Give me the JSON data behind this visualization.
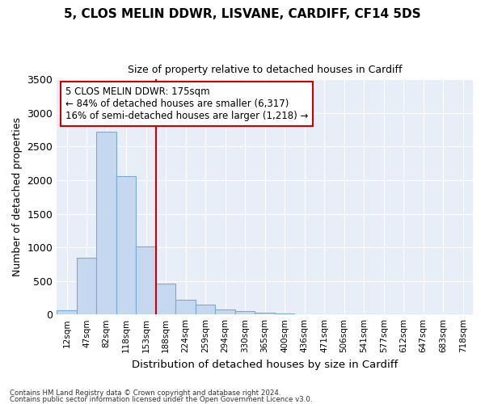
{
  "title1": "5, CLOS MELIN DDWR, LISVANE, CARDIFF, CF14 5DS",
  "title2": "Size of property relative to detached houses in Cardiff",
  "xlabel": "Distribution of detached houses by size in Cardiff",
  "ylabel": "Number of detached properties",
  "categories": [
    "12sqm",
    "47sqm",
    "82sqm",
    "118sqm",
    "153sqm",
    "188sqm",
    "224sqm",
    "259sqm",
    "294sqm",
    "330sqm",
    "365sqm",
    "400sqm",
    "436sqm",
    "471sqm",
    "506sqm",
    "541sqm",
    "577sqm",
    "612sqm",
    "647sqm",
    "683sqm",
    "718sqm"
  ],
  "values": [
    65,
    850,
    2720,
    2060,
    1010,
    460,
    215,
    145,
    75,
    55,
    30,
    10,
    5,
    3,
    2,
    1,
    0,
    0,
    0,
    0,
    0
  ],
  "bar_color": "#c5d8f0",
  "bar_edge_color": "#7aaad4",
  "vline_color": "#cc0000",
  "vline_x_index": 4.5,
  "annotation_text": "5 CLOS MELIN DDWR: 175sqm\n← 84% of detached houses are smaller (6,317)\n16% of semi-detached houses are larger (1,218) →",
  "annotation_box_edge_color": "#cc0000",
  "ylim": [
    0,
    3500
  ],
  "yticks": [
    0,
    500,
    1000,
    1500,
    2000,
    2500,
    3000,
    3500
  ],
  "bg_color": "#e8eef8",
  "grid_color": "#ffffff",
  "footer1": "Contains HM Land Registry data © Crown copyright and database right 2024.",
  "footer2": "Contains public sector information licensed under the Open Government Licence v3.0."
}
